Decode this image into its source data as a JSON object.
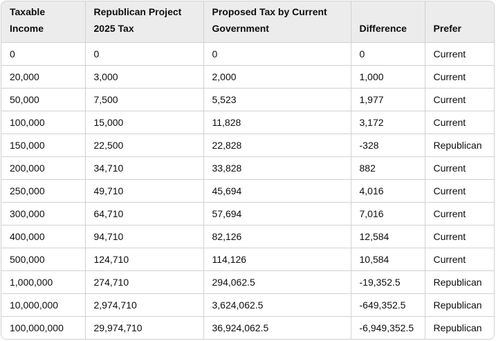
{
  "table": {
    "headers": [
      "Taxable Income",
      "Republican Project 2025 Tax",
      "Proposed Tax by Current Government",
      "Difference",
      "Prefer"
    ],
    "rows": [
      [
        "0",
        "0",
        "0",
        "0",
        "Current"
      ],
      [
        "20,000",
        "3,000",
        "2,000",
        "1,000",
        "Current"
      ],
      [
        "50,000",
        "7,500",
        "5,523",
        "1,977",
        "Current"
      ],
      [
        "100,000",
        "15,000",
        "11,828",
        "3,172",
        "Current"
      ],
      [
        "150,000",
        "22,500",
        "22,828",
        "-328",
        "Republican"
      ],
      [
        "200,000",
        "34,710",
        "33,828",
        "882",
        "Current"
      ],
      [
        "250,000",
        "49,710",
        "45,694",
        "4,016",
        "Current"
      ],
      [
        "300,000",
        "64,710",
        "57,694",
        "7,016",
        "Current"
      ],
      [
        "400,000",
        "94,710",
        "82,126",
        "12,584",
        "Current"
      ],
      [
        "500,000",
        "124,710",
        "114,126",
        "10,584",
        "Current"
      ],
      [
        "1,000,000",
        "274,710",
        "294,062.5",
        "-19,352.5",
        "Republican"
      ],
      [
        "10,000,000",
        "2,974,710",
        "3,624,062.5",
        "-649,352.5",
        "Republican"
      ],
      [
        "100,000,000",
        "29,974,710",
        "36,924,062.5",
        "-6,949,352.5",
        "Republican"
      ]
    ]
  }
}
